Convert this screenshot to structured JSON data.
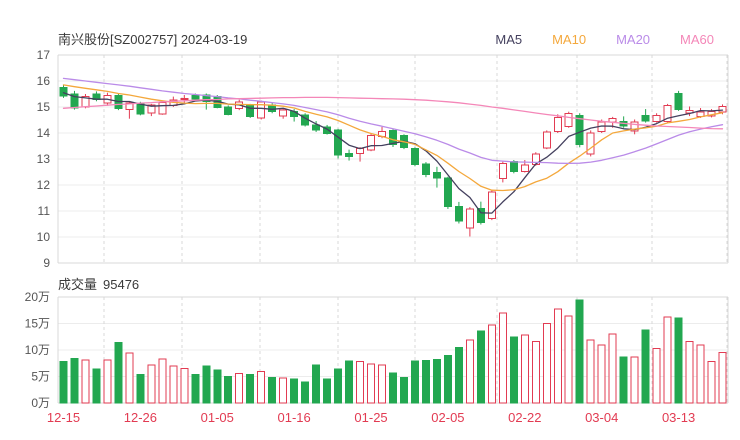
{
  "header": {
    "title": "南兴股份[SZ002757] 2024-03-19",
    "legend": [
      {
        "label": "MA5",
        "color": "#44405E"
      },
      {
        "label": "MA10",
        "color": "#F4A83C"
      },
      {
        "label": "MA20",
        "color": "#BA8BE8"
      },
      {
        "label": "MA60",
        "color": "#F487B8"
      }
    ]
  },
  "volume_header": {
    "label": "成交量",
    "value": "95476"
  },
  "colors": {
    "up": "#E23B52",
    "down": "#22A750",
    "x_label": "#E23B52",
    "tick_text": "#555555",
    "grid_major": "#D8D8D8",
    "grid_minor": "#ECECEC",
    "grid_dashed": "#D9D9D9"
  },
  "axes": {
    "price_ticks": [
      17,
      16,
      15,
      14,
      13,
      12,
      11,
      10,
      9
    ],
    "volume_ticks": [
      {
        "label": "20万",
        "value": 200000
      },
      {
        "label": "15万",
        "value": 150000
      },
      {
        "label": "10万",
        "value": 100000
      },
      {
        "label": "5万",
        "value": 50000
      },
      {
        "label": "0万",
        "value": 0
      }
    ],
    "x_tick_labels": [
      {
        "label": "12-15",
        "index": 0
      },
      {
        "label": "12-26",
        "index": 7
      },
      {
        "label": "01-05",
        "index": 14
      },
      {
        "label": "01-16",
        "index": 21
      },
      {
        "label": "01-25",
        "index": 28
      },
      {
        "label": "02-05",
        "index": 35
      },
      {
        "label": "02-22",
        "index": 42
      },
      {
        "label": "03-04",
        "index": 49
      },
      {
        "label": "03-13",
        "index": 56
      }
    ]
  },
  "chart_data": {
    "type": "candlestick",
    "title": "南兴股份[SZ002757] 2024-03-19",
    "price_range": [
      9,
      17
    ],
    "volume_range": [
      0,
      200000
    ],
    "grid": true,
    "legend_position": "top-right",
    "candle_columns": [
      "date",
      "open",
      "high",
      "low",
      "close",
      "volume"
    ],
    "candles": [
      [
        "12-15",
        15.75,
        15.85,
        15.35,
        15.42,
        78000
      ],
      [
        "12-18",
        15.5,
        15.62,
        14.9,
        14.97,
        84000
      ],
      [
        "12-19",
        15.0,
        15.5,
        14.95,
        15.4,
        81000
      ],
      [
        "12-20",
        15.5,
        15.6,
        15.22,
        15.28,
        64000
      ],
      [
        "12-21",
        15.15,
        15.55,
        15.05,
        15.45,
        81000
      ],
      [
        "12-22",
        15.45,
        15.52,
        14.88,
        14.95,
        114000
      ],
      [
        "12-25",
        14.9,
        15.22,
        14.55,
        15.15,
        94000
      ],
      [
        "12-26",
        15.12,
        15.2,
        14.68,
        14.74,
        54000
      ],
      [
        "12-27",
        14.76,
        15.12,
        14.65,
        15.08,
        72000
      ],
      [
        "12-28",
        14.74,
        15.25,
        14.7,
        15.18,
        83000
      ],
      [
        "12-29",
        15.05,
        15.4,
        15.0,
        15.27,
        70000
      ],
      [
        "01-02",
        15.28,
        15.46,
        15.16,
        15.33,
        65000
      ],
      [
        "01-03",
        15.45,
        15.52,
        15.25,
        15.3,
        54000
      ],
      [
        "01-04",
        15.46,
        15.52,
        14.9,
        15.22,
        70000
      ],
      [
        "01-05",
        15.4,
        15.46,
        14.95,
        14.98,
        62000
      ],
      [
        "01-08",
        15.0,
        15.06,
        14.68,
        14.72,
        50000
      ],
      [
        "01-09",
        14.95,
        15.28,
        14.88,
        15.2,
        56000
      ],
      [
        "01-10",
        15.08,
        15.12,
        14.58,
        14.63,
        54000
      ],
      [
        "01-11",
        14.57,
        15.25,
        14.52,
        15.2,
        59000
      ],
      [
        "01-12",
        15.08,
        15.15,
        14.76,
        14.82,
        48000
      ],
      [
        "01-15",
        14.65,
        14.95,
        14.55,
        14.88,
        47000
      ],
      [
        "01-16",
        14.82,
        14.92,
        14.44,
        14.63,
        45000
      ],
      [
        "01-17",
        14.7,
        14.76,
        14.25,
        14.31,
        40000
      ],
      [
        "01-18",
        14.31,
        14.46,
        14.04,
        14.12,
        72000
      ],
      [
        "01-19",
        14.24,
        14.31,
        13.94,
        13.99,
        45000
      ],
      [
        "01-22",
        14.12,
        14.16,
        13.02,
        13.15,
        64000
      ],
      [
        "01-23",
        13.22,
        13.36,
        12.94,
        13.09,
        79000
      ],
      [
        "01-24",
        13.22,
        13.46,
        12.9,
        13.41,
        78000
      ],
      [
        "01-25",
        13.35,
        13.96,
        13.3,
        13.9,
        74000
      ],
      [
        "01-26",
        13.86,
        14.24,
        13.8,
        14.05,
        72000
      ],
      [
        "01-29",
        14.1,
        14.14,
        13.46,
        13.55,
        57000
      ],
      [
        "01-30",
        13.9,
        13.95,
        13.38,
        13.45,
        48000
      ],
      [
        "01-31",
        13.4,
        13.45,
        12.72,
        12.78,
        79000
      ],
      [
        "02-01",
        12.8,
        12.88,
        12.3,
        12.4,
        80000
      ],
      [
        "02-02",
        12.48,
        12.7,
        11.9,
        12.26,
        82000
      ],
      [
        "02-05",
        12.26,
        12.32,
        11.08,
        11.18,
        90000
      ],
      [
        "02-06",
        11.18,
        11.35,
        10.52,
        10.62,
        105000
      ],
      [
        "02-07",
        10.35,
        11.15,
        10.02,
        11.08,
        119000
      ],
      [
        "02-08",
        11.1,
        11.36,
        10.48,
        10.55,
        136000
      ],
      [
        "02-19",
        10.72,
        11.82,
        10.65,
        11.74,
        147000
      ],
      [
        "02-20",
        12.25,
        12.9,
        12.1,
        12.82,
        170000
      ],
      [
        "02-21",
        12.9,
        12.96,
        12.45,
        12.52,
        125000
      ],
      [
        "02-22",
        12.52,
        12.96,
        12.48,
        12.76,
        128000
      ],
      [
        "02-23",
        12.78,
        13.26,
        12.74,
        13.2,
        116000
      ],
      [
        "02-26",
        13.42,
        14.1,
        13.38,
        14.03,
        150000
      ],
      [
        "02-27",
        14.05,
        14.72,
        14.0,
        14.6,
        177000
      ],
      [
        "02-28",
        14.25,
        14.82,
        14.2,
        14.75,
        164000
      ],
      [
        "02-29",
        14.68,
        14.76,
        13.45,
        13.56,
        194000
      ],
      [
        "03-01",
        13.2,
        14.1,
        13.1,
        14.0,
        119000
      ],
      [
        "03-04",
        14.06,
        14.52,
        14.0,
        14.42,
        109000
      ],
      [
        "03-05",
        14.42,
        14.62,
        14.2,
        14.55,
        130000
      ],
      [
        "03-06",
        14.44,
        14.64,
        14.2,
        14.26,
        87000
      ],
      [
        "03-07",
        14.08,
        14.52,
        13.95,
        14.42,
        87000
      ],
      [
        "03-08",
        14.68,
        14.92,
        14.4,
        14.46,
        138000
      ],
      [
        "03-11",
        14.45,
        14.76,
        14.4,
        14.68,
        103000
      ],
      [
        "03-12",
        14.45,
        15.12,
        14.4,
        15.05,
        162000
      ],
      [
        "03-13",
        15.52,
        15.62,
        14.85,
        14.9,
        160000
      ],
      [
        "03-14",
        14.77,
        15.02,
        14.65,
        14.87,
        116000
      ],
      [
        "03-15",
        14.64,
        14.96,
        14.58,
        14.8,
        109000
      ],
      [
        "03-18",
        14.66,
        14.92,
        14.6,
        14.82,
        78000
      ],
      [
        "03-19",
        14.8,
        15.1,
        14.72,
        15.02,
        95476
      ]
    ],
    "ma_lines": [
      {
        "name": "MA5",
        "color": "#44405E",
        "values": [
          15.55,
          15.4,
          15.35,
          15.3,
          15.3,
          15.21,
          15.21,
          15.11,
          15.03,
          15.05,
          15.06,
          15.12,
          15.23,
          15.26,
          15.22,
          15.11,
          15.08,
          14.95,
          14.95,
          14.91,
          14.95,
          14.83,
          14.57,
          14.35,
          14.15,
          13.84,
          13.53,
          13.4,
          13.51,
          13.52,
          13.6,
          13.68,
          13.59,
          13.31,
          12.92,
          12.39,
          11.86,
          11.52,
          10.93,
          10.92,
          11.35,
          11.74,
          12.28,
          12.81,
          13.07,
          13.42,
          13.87,
          14.03,
          14.19,
          14.27,
          14.26,
          14.16,
          14.13,
          14.22,
          14.36,
          14.57,
          14.66,
          14.75,
          14.86,
          14.85,
          14.88
        ]
      },
      {
        "name": "MA10",
        "color": "#F4A83C",
        "values": [
          15.85,
          15.78,
          15.72,
          15.66,
          15.6,
          15.52,
          15.46,
          15.38,
          15.3,
          15.24,
          15.18,
          15.15,
          15.13,
          15.14,
          15.14,
          15.11,
          15.1,
          15.09,
          15.09,
          15.07,
          15.03,
          14.96,
          14.83,
          14.72,
          14.62,
          14.48,
          14.3,
          14.12,
          13.98,
          13.87,
          13.74,
          13.66,
          13.56,
          13.35,
          13.14,
          12.84,
          12.52,
          12.25,
          11.95,
          11.8,
          11.79,
          11.82,
          11.94,
          12.12,
          12.26,
          12.51,
          12.84,
          13.11,
          13.42,
          13.74,
          14.0,
          14.08,
          14.15,
          14.2,
          14.26,
          14.39,
          14.45,
          14.52,
          14.62,
          14.7,
          14.78
        ]
      },
      {
        "name": "MA20",
        "color": "#BA8BE8",
        "values": [
          16.1,
          16.05,
          16.0,
          15.95,
          15.9,
          15.85,
          15.8,
          15.74,
          15.68,
          15.62,
          15.57,
          15.52,
          15.48,
          15.44,
          15.4,
          15.35,
          15.31,
          15.26,
          15.22,
          15.17,
          15.12,
          15.06,
          14.98,
          14.9,
          14.81,
          14.7,
          14.57,
          14.45,
          14.35,
          14.26,
          14.16,
          14.07,
          13.97,
          13.85,
          13.72,
          13.56,
          13.38,
          13.23,
          13.06,
          12.95,
          12.92,
          12.89,
          12.88,
          12.87,
          12.86,
          12.84,
          12.83,
          12.84,
          12.88,
          12.95,
          13.05,
          13.15,
          13.28,
          13.42,
          13.58,
          13.75,
          13.92,
          14.05,
          14.15,
          14.24,
          14.32
        ]
      },
      {
        "name": "MA60",
        "color": "#F487B8",
        "values": [
          14.95,
          14.98,
          15.01,
          15.04,
          15.07,
          15.1,
          15.12,
          15.15,
          15.17,
          15.2,
          15.22,
          15.24,
          15.26,
          15.28,
          15.29,
          15.31,
          15.32,
          15.33,
          15.34,
          15.35,
          15.36,
          15.36,
          15.37,
          15.37,
          15.37,
          15.36,
          15.35,
          15.34,
          15.33,
          15.32,
          15.31,
          15.3,
          15.28,
          15.26,
          15.23,
          15.2,
          15.16,
          15.11,
          15.06,
          15.0,
          14.95,
          14.89,
          14.83,
          14.77,
          14.71,
          14.66,
          14.6,
          14.55,
          14.5,
          14.45,
          14.41,
          14.37,
          14.33,
          14.3,
          14.27,
          14.25,
          14.23,
          14.21,
          14.19,
          14.17,
          14.16
        ]
      }
    ]
  }
}
